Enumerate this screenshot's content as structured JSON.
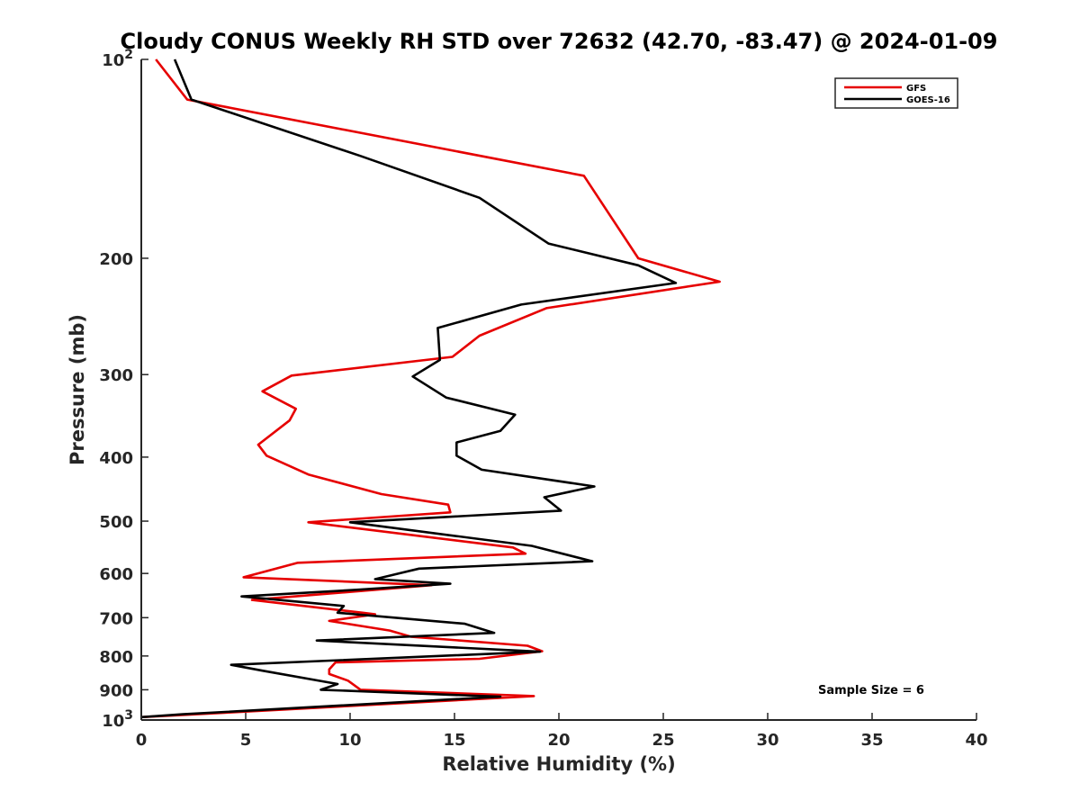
{
  "chart_data": {
    "type": "line",
    "title": "Cloudy CONUS Weekly RH STD over 72632 (42.70, -83.47) @ 2024-01-09",
    "xlabel": "Relative Humidity (%)",
    "ylabel": "Pressure (mb)",
    "xlim": [
      0,
      40
    ],
    "ylim": [
      100,
      1000
    ],
    "yscale": "log",
    "y_reversed": true,
    "x_ticks": [
      "0",
      "5",
      "10",
      "15",
      "20",
      "25",
      "30",
      "35",
      "40"
    ],
    "y_ticks": [
      {
        "value": 100,
        "base": "10",
        "exp": "2"
      },
      {
        "value": 200,
        "label": "200"
      },
      {
        "value": 300,
        "label": "300"
      },
      {
        "value": 400,
        "label": "400"
      },
      {
        "value": 500,
        "label": "500"
      },
      {
        "value": 600,
        "label": "600"
      },
      {
        "value": 700,
        "label": "700"
      },
      {
        "value": 800,
        "label": "800"
      },
      {
        "value": 900,
        "label": "900"
      },
      {
        "value": 1000,
        "base": "10",
        "exp": "3"
      }
    ],
    "legend_position": "top-right",
    "annotation": "Sample Size = 6",
    "series": [
      {
        "name": "GFS",
        "color": "#e60000",
        "points": [
          [
            0.7,
            100
          ],
          [
            2.2,
            115
          ],
          [
            21.2,
            150
          ],
          [
            23.8,
            200
          ],
          [
            27.7,
            217
          ],
          [
            19.4,
            238
          ],
          [
            16.2,
            262
          ],
          [
            14.9,
            282
          ],
          [
            7.2,
            301
          ],
          [
            5.8,
            318
          ],
          [
            7.4,
            338
          ],
          [
            7.1,
            352
          ],
          [
            5.6,
            383
          ],
          [
            6.0,
            398
          ],
          [
            8.0,
            425
          ],
          [
            11.5,
            455
          ],
          [
            14.7,
            472
          ],
          [
            14.8,
            485
          ],
          [
            8.0,
            502
          ],
          [
            17.8,
            548
          ],
          [
            18.4,
            560
          ],
          [
            7.5,
            578
          ],
          [
            4.9,
            608
          ],
          [
            13.9,
            625
          ],
          [
            5.3,
            658
          ],
          [
            10.6,
            688
          ],
          [
            11.2,
            692
          ],
          [
            9.0,
            708
          ],
          [
            11.9,
            732
          ],
          [
            12.9,
            748
          ],
          [
            18.5,
            772
          ],
          [
            19.2,
            787
          ],
          [
            16.2,
            808
          ],
          [
            9.3,
            818
          ],
          [
            9.0,
            838
          ],
          [
            9.0,
            852
          ],
          [
            9.9,
            872
          ],
          [
            10.5,
            900
          ],
          [
            18.8,
            920
          ],
          [
            4.0,
            975
          ],
          [
            0.0,
            990
          ]
        ]
      },
      {
        "name": "GOES-16",
        "color": "#000000",
        "points": [
          [
            1.6,
            100
          ],
          [
            2.4,
            115
          ],
          [
            10.5,
            140
          ],
          [
            16.2,
            162
          ],
          [
            19.5,
            190
          ],
          [
            23.8,
            205
          ],
          [
            25.6,
            218
          ],
          [
            18.2,
            235
          ],
          [
            14.2,
            255
          ],
          [
            14.3,
            285
          ],
          [
            13.0,
            302
          ],
          [
            14.6,
            325
          ],
          [
            17.9,
            345
          ],
          [
            17.2,
            365
          ],
          [
            15.1,
            380
          ],
          [
            15.1,
            398
          ],
          [
            16.3,
            418
          ],
          [
            21.7,
            443
          ],
          [
            19.3,
            460
          ],
          [
            20.1,
            482
          ],
          [
            10.0,
            502
          ],
          [
            18.7,
            545
          ],
          [
            21.6,
            575
          ],
          [
            13.3,
            590
          ],
          [
            11.2,
            612
          ],
          [
            14.8,
            622
          ],
          [
            10.4,
            635
          ],
          [
            4.8,
            650
          ],
          [
            9.7,
            672
          ],
          [
            9.4,
            688
          ],
          [
            15.5,
            715
          ],
          [
            16.9,
            738
          ],
          [
            8.4,
            758
          ],
          [
            19.1,
            788
          ],
          [
            4.3,
            825
          ],
          [
            5.8,
            842
          ],
          [
            9.4,
            882
          ],
          [
            8.6,
            900
          ],
          [
            17.2,
            922
          ],
          [
            2.0,
            980
          ],
          [
            0.0,
            990
          ]
        ]
      }
    ]
  }
}
